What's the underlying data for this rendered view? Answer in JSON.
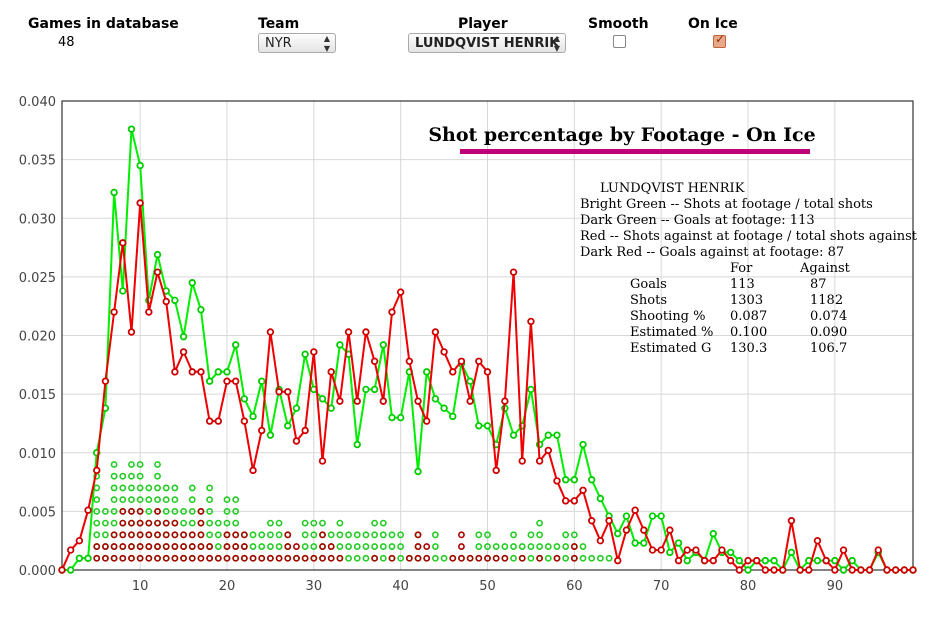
{
  "controls": {
    "games_label": "Games in database",
    "games_value": "48",
    "team_label": "Team",
    "team_value": "NYR",
    "player_label": "Player",
    "player_value": "LUNDQVIST HENRIK",
    "smooth_label": "Smooth",
    "smooth_checked": false,
    "onice_label": "On Ice",
    "onice_checked": true
  },
  "chart_data": {
    "type": "line",
    "title": "Shot percentage by Footage - On Ice",
    "title_underline_color": "#c0007a",
    "xlim": [
      1,
      99
    ],
    "ylim": [
      0,
      0.04
    ],
    "x_ticks": [
      10,
      20,
      30,
      40,
      50,
      60,
      70,
      80,
      90
    ],
    "y_ticks": [
      "0.000",
      "0.005",
      "0.010",
      "0.015",
      "0.020",
      "0.025",
      "0.030",
      "0.035",
      "0.040"
    ],
    "grid": true,
    "x": [
      1,
      2,
      3,
      4,
      5,
      6,
      7,
      8,
      9,
      10,
      11,
      12,
      13,
      14,
      15,
      16,
      17,
      18,
      19,
      20,
      21,
      22,
      23,
      24,
      25,
      26,
      27,
      28,
      29,
      30,
      31,
      32,
      33,
      34,
      35,
      36,
      37,
      38,
      39,
      40,
      41,
      42,
      43,
      44,
      45,
      46,
      47,
      48,
      49,
      50,
      51,
      52,
      53,
      54,
      55,
      56,
      57,
      58,
      59,
      60,
      61,
      62,
      63,
      64,
      65,
      66,
      67,
      68,
      69,
      70,
      71,
      72,
      73,
      74,
      75,
      76,
      77,
      78,
      79,
      80,
      81,
      82,
      83,
      84,
      85,
      86,
      87,
      88,
      89,
      90,
      91,
      92,
      93,
      94,
      95,
      96,
      97,
      98,
      99
    ],
    "series": [
      {
        "color": "#00ee00",
        "values": [
          0.0,
          0.0,
          0.001,
          0.001,
          0.01,
          0.0138,
          0.0322,
          0.0238,
          0.0376,
          0.0345,
          0.023,
          0.0269,
          0.0238,
          0.023,
          0.0199,
          0.0245,
          0.0222,
          0.0161,
          0.0169,
          0.0169,
          0.0192,
          0.0146,
          0.0131,
          0.0161,
          0.0115,
          0.0154,
          0.0123,
          0.0138,
          0.0184,
          0.0154,
          0.0146,
          0.0138,
          0.0192,
          0.0184,
          0.0107,
          0.0154,
          0.0154,
          0.0192,
          0.013,
          0.013,
          0.0169,
          0.0084,
          0.0169,
          0.0146,
          0.0138,
          0.0131,
          0.0176,
          0.0161,
          0.0123,
          0.0123,
          0.0107,
          0.0138,
          0.0115,
          0.0123,
          0.0154,
          0.0107,
          0.0115,
          0.0115,
          0.0077,
          0.0077,
          0.0107,
          0.0077,
          0.0061,
          0.0046,
          0.0031,
          0.0046,
          0.0023,
          0.0023,
          0.0046,
          0.0046,
          0.0015,
          0.0023,
          0.0008,
          0.0015,
          0.0008,
          0.0031,
          0.0015,
          0.0015,
          0.0008,
          0.0,
          0.0008,
          0.0008,
          0.0008,
          0.0,
          0.0015,
          0.0,
          0.0008,
          0.0008,
          0.0008,
          0.0008,
          0.0,
          0.0008,
          0.0,
          0.0,
          0.0015,
          0.0,
          0.0,
          0.0,
          0.0
        ]
      },
      {
        "color": "#ee0000",
        "values": [
          0.0,
          0.0017,
          0.0025,
          0.0051,
          0.0085,
          0.0161,
          0.022,
          0.0279,
          0.0203,
          0.0313,
          0.022,
          0.0254,
          0.0229,
          0.0169,
          0.0186,
          0.0169,
          0.0169,
          0.0127,
          0.0127,
          0.0161,
          0.0161,
          0.0127,
          0.0085,
          0.0119,
          0.0203,
          0.0152,
          0.0152,
          0.011,
          0.0119,
          0.0186,
          0.0093,
          0.0169,
          0.0144,
          0.0203,
          0.0144,
          0.0203,
          0.0178,
          0.0144,
          0.022,
          0.0237,
          0.0178,
          0.0144,
          0.0127,
          0.0203,
          0.0186,
          0.0169,
          0.0178,
          0.0144,
          0.0178,
          0.0169,
          0.0085,
          0.0144,
          0.0254,
          0.0093,
          0.0212,
          0.0093,
          0.0102,
          0.0076,
          0.0059,
          0.0059,
          0.0068,
          0.0042,
          0.0025,
          0.0042,
          0.0008,
          0.0034,
          0.0051,
          0.0034,
          0.0017,
          0.0017,
          0.0034,
          0.0008,
          0.0017,
          0.0017,
          0.0008,
          0.0008,
          0.0017,
          0.0008,
          0.0,
          0.0008,
          0.0008,
          0.0,
          0.0,
          0.0,
          0.0042,
          0.0,
          0.0,
          0.0025,
          0.0008,
          0.0,
          0.0017,
          0.0,
          0.0,
          0.0,
          0.0017,
          0.0,
          0.0,
          0.0,
          0.0
        ]
      }
    ],
    "goals_for_counts": [
      0,
      0,
      0,
      0,
      8,
      5,
      9,
      8,
      9,
      9,
      7,
      9,
      7,
      7,
      5,
      7,
      5,
      7,
      4,
      6,
      6,
      3,
      3,
      3,
      4,
      4,
      3,
      1,
      4,
      4,
      4,
      3,
      4,
      3,
      3,
      3,
      4,
      4,
      3,
      3,
      1,
      3,
      1,
      3,
      1,
      1,
      1,
      1,
      3,
      3,
      2,
      2,
      3,
      2,
      3,
      4,
      2,
      2,
      3,
      3,
      2,
      1,
      1,
      1,
      0,
      0,
      0,
      0,
      0,
      0,
      0,
      0,
      0,
      0,
      0,
      0,
      0,
      0,
      0,
      0,
      0,
      0,
      0,
      0,
      0,
      0,
      0,
      0,
      0,
      0,
      0,
      0,
      0,
      0,
      0,
      0,
      0,
      0,
      0
    ],
    "goals_against_counts": [
      0,
      0,
      0,
      1,
      2,
      2,
      3,
      5,
      5,
      5,
      4,
      5,
      4,
      4,
      3,
      3,
      5,
      2,
      1,
      3,
      3,
      3,
      1,
      1,
      1,
      1,
      3,
      2,
      1,
      1,
      3,
      2,
      1,
      0,
      0,
      0,
      1,
      0,
      1,
      0,
      1,
      3,
      2,
      0,
      0,
      1,
      3,
      1,
      1,
      1,
      1,
      1,
      0,
      1,
      0,
      1,
      0,
      1,
      0,
      2,
      0,
      0,
      0,
      0,
      0,
      0,
      0,
      0,
      0,
      0,
      0,
      0,
      0,
      0,
      0,
      0,
      0,
      0,
      0,
      0,
      0,
      0,
      0,
      0,
      0,
      0,
      0,
      0,
      0,
      0,
      0,
      0,
      0,
      0,
      0,
      0,
      0,
      0,
      0
    ],
    "dot_colors": {
      "goals_for": "#22cc22",
      "goals_against": "#aa0000"
    }
  },
  "legend": {
    "player": "LUNDQVIST HENRIK",
    "lines": [
      "Bright Green -- Shots at footage / total shots",
      "Dark Green -- Goals at footage: 113",
      "Red -- Shots against at footage / total shots against",
      "Dark Red -- Goals against at footage: 87"
    ],
    "table": {
      "headers": [
        "",
        "For",
        "Against"
      ],
      "rows": [
        [
          "Goals",
          "113",
          "87"
        ],
        [
          "Shots",
          "1303",
          "1182"
        ],
        [
          "Shooting %",
          "0.087",
          "0.074"
        ],
        [
          "Estimated %",
          "0.100",
          "0.090"
        ],
        [
          "Estimated G",
          "130.3",
          "106.7"
        ]
      ]
    }
  }
}
